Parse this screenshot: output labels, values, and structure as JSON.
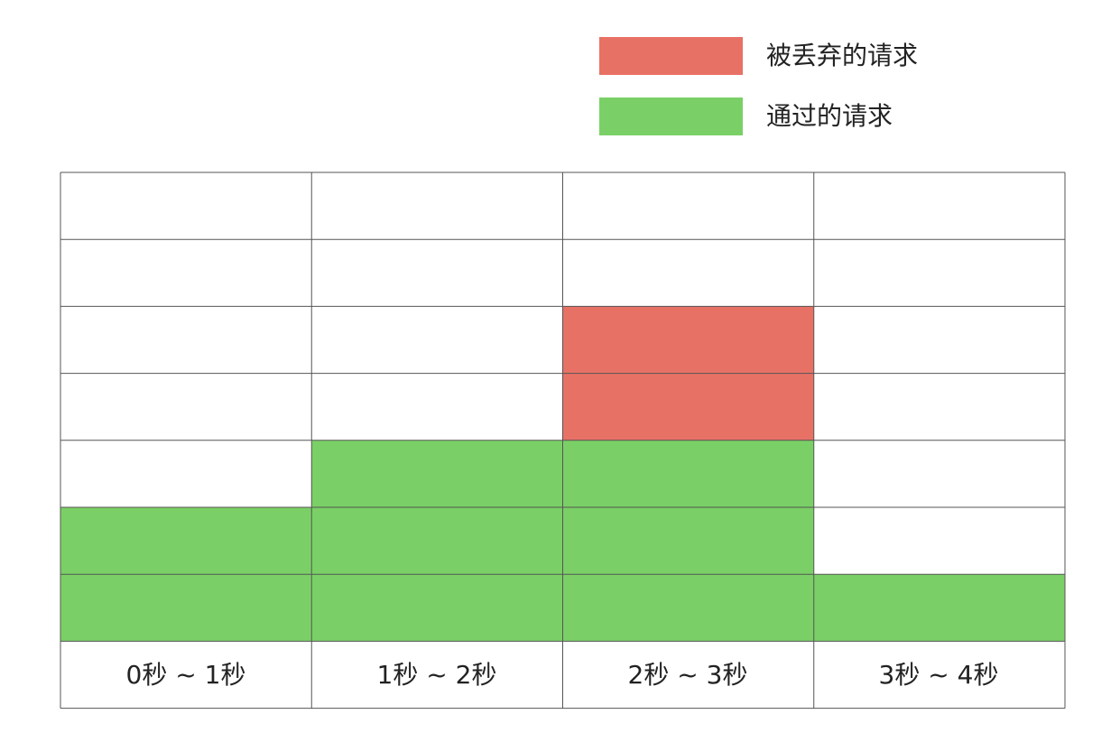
{
  "legend": {
    "items": [
      {
        "label": "被丢弃的请求",
        "color": "#e87166",
        "key": "dropped"
      },
      {
        "label": "通过的请求",
        "color": "#7ad066",
        "key": "passed"
      }
    ]
  },
  "grid": {
    "rows": 7,
    "line_color": "#555555",
    "columns": [
      {
        "label": "0秒 ~ 1秒",
        "passed": 2,
        "dropped": 0
      },
      {
        "label": "1秒 ~ 2秒",
        "passed": 3,
        "dropped": 0
      },
      {
        "label": "2秒 ~ 3秒",
        "passed": 3,
        "dropped": 2
      },
      {
        "label": "3秒 ~ 4秒",
        "passed": 1,
        "dropped": 0
      }
    ]
  }
}
